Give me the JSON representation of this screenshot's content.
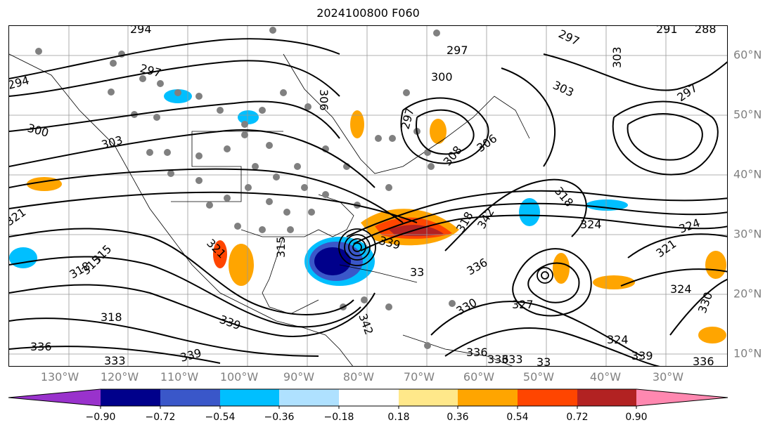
{
  "title": "2024100800 F060",
  "lon_labels": [
    "130°W",
    "120°W",
    "110°W",
    "100°W",
    "90°W",
    "80°W",
    "70°W",
    "60°W",
    "50°W",
    "40°W",
    "30°W"
  ],
  "lat_labels": [
    "60°N",
    "50°N",
    "40°N",
    "30°N",
    "20°N",
    "10°N"
  ],
  "colorbar": {
    "ticks": [
      "−0.90",
      "−0.72",
      "−0.54",
      "−0.36",
      "−0.18",
      "0.18",
      "0.36",
      "0.54",
      "0.72",
      "0.90"
    ],
    "colors": [
      "#9932cc",
      "#00008b",
      "#3a57c9",
      "#00bfff",
      "#afe1ff",
      "#ffffff",
      "#ffe88a",
      "#ffa500",
      "#ff4500",
      "#b22222",
      "#ff88b0"
    ]
  },
  "contour_labels": [
    {
      "text": "294"
    },
    {
      "text": "297"
    },
    {
      "text": "297"
    },
    {
      "text": "294"
    },
    {
      "text": "300"
    },
    {
      "text": "303"
    },
    {
      "text": "306"
    },
    {
      "text": "297"
    },
    {
      "text": "300"
    },
    {
      "text": "303"
    },
    {
      "text": "297"
    },
    {
      "text": "303"
    },
    {
      "text": "291"
    },
    {
      "text": "288"
    },
    {
      "text": "297"
    },
    {
      "text": "306"
    },
    {
      "text": "308"
    },
    {
      "text": "318"
    },
    {
      "text": "321"
    },
    {
      "text": "315"
    },
    {
      "text": "318"
    },
    {
      "text": "315"
    },
    {
      "text": "339"
    },
    {
      "text": "339"
    },
    {
      "text": "33"
    },
    {
      "text": "342"
    },
    {
      "text": "336"
    },
    {
      "text": "330"
    },
    {
      "text": "327"
    },
    {
      "text": "324"
    },
    {
      "text": "324"
    },
    {
      "text": "321"
    },
    {
      "text": "324"
    },
    {
      "text": "330"
    },
    {
      "text": "339"
    },
    {
      "text": "336"
    },
    {
      "text": "333"
    },
    {
      "text": "336"
    },
    {
      "text": "33"
    },
    {
      "text": "324"
    },
    {
      "text": "339"
    },
    {
      "text": "336"
    },
    {
      "text": "318"
    },
    {
      "text": "336"
    },
    {
      "text": "333"
    },
    {
      "text": "342"
    },
    {
      "text": "318"
    },
    {
      "text": "315"
    },
    {
      "text": "321"
    }
  ]
}
